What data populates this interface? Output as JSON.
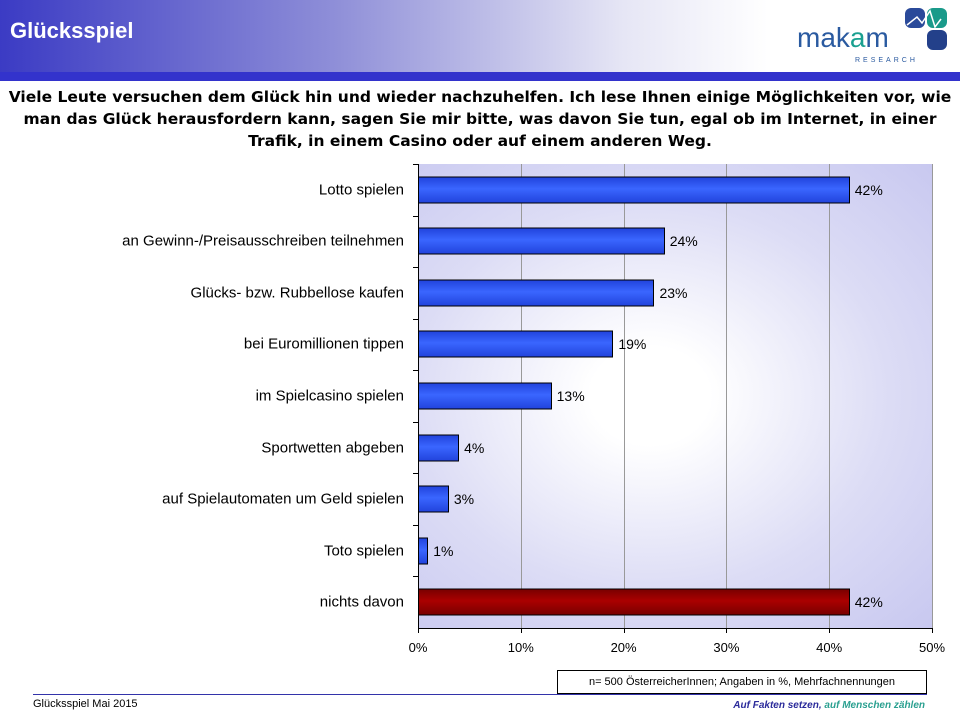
{
  "header": {
    "title": "Glücksspiel",
    "logo_text": "makam",
    "logo_sub": "RESEARCH"
  },
  "question": "Viele Leute versuchen dem Glück hin und wieder nachzuhelfen. Ich lese Ihnen einige Möglichkeiten vor, wie man das Glück herausfordern kann, sagen Sie mir bitte, was davon Sie tun, egal ob im Internet, in einer Trafik, in einem Casino oder auf einem anderen Weg.",
  "chart_data": {
    "type": "bar",
    "orientation": "horizontal",
    "categories": [
      "Lotto spielen",
      "an Gewinn-/Preisausschreiben teilnehmen",
      "Glücks- bzw. Rubbellose kaufen",
      "bei Euromillionen tippen",
      "im Spielcasino spielen",
      "Sportwetten abgeben",
      "auf Spielautomaten um Geld spielen",
      "Toto spielen",
      "nichts davon"
    ],
    "values": [
      42,
      24,
      23,
      19,
      13,
      4,
      3,
      1,
      42
    ],
    "value_labels": [
      "42%",
      "24%",
      "23%",
      "19%",
      "13%",
      "4%",
      "3%",
      "1%",
      "42%"
    ],
    "colors": [
      "#2244dd",
      "#2244dd",
      "#2244dd",
      "#2244dd",
      "#2244dd",
      "#2244dd",
      "#2244dd",
      "#2244dd",
      "#7a0000"
    ],
    "xlim": [
      0,
      50
    ],
    "xticks": [
      "0%",
      "10%",
      "20%",
      "30%",
      "40%",
      "50%"
    ],
    "grid": true
  },
  "note": "n= 500 ÖsterreicherInnen; Angaben in %, Mehrfachnennungen",
  "footer": {
    "left": "Glücksspiel Mai 2015",
    "right_a": "Auf Fakten setzen,",
    "right_b": "auf Menschen zählen"
  }
}
